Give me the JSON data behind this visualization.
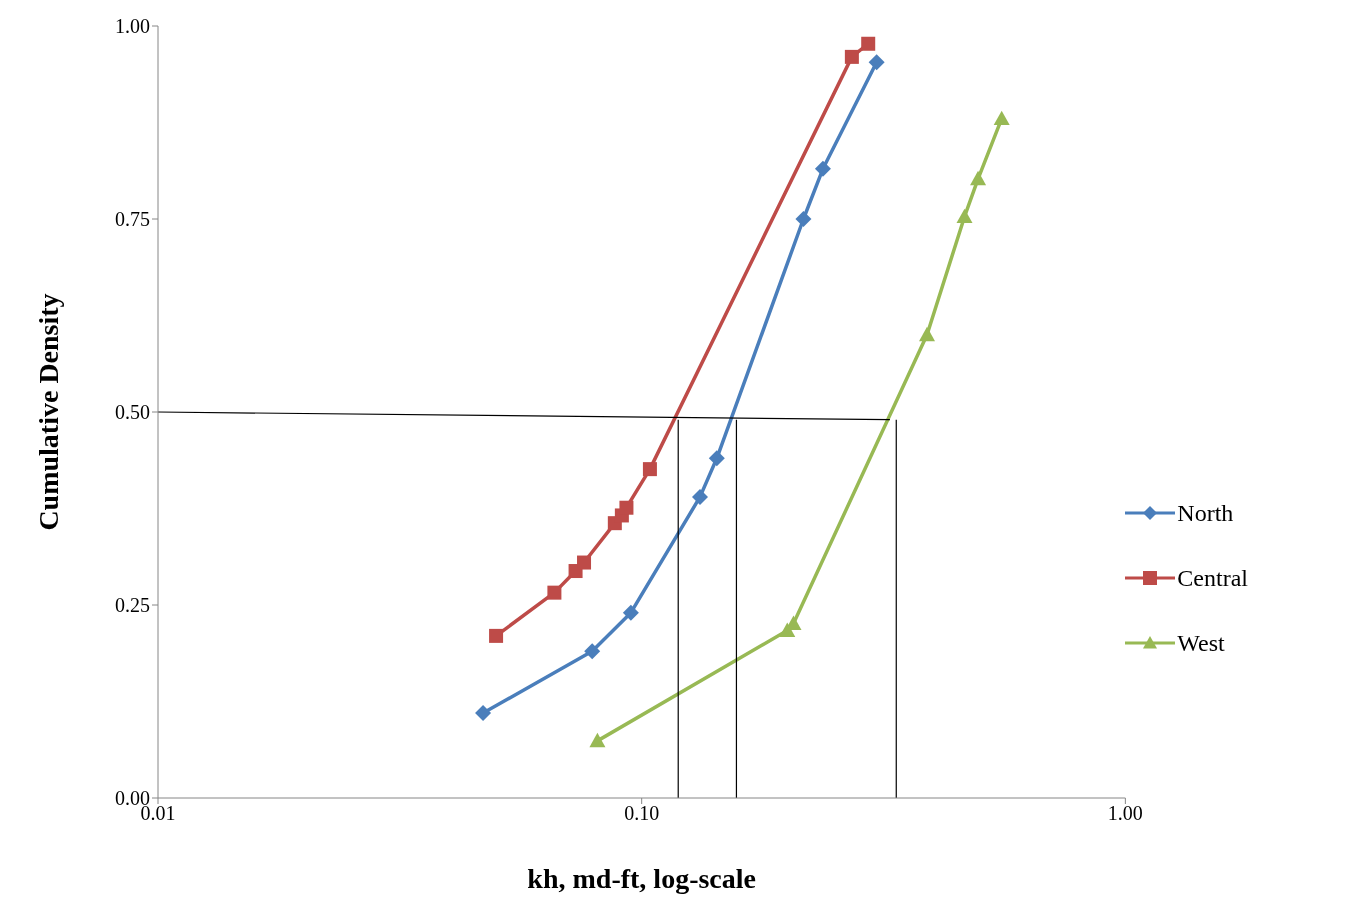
{
  "chart_data": {
    "type": "line",
    "xlabel": "kh, md-ft, log-scale",
    "ylabel": "Cumulative Density",
    "log": "x",
    "xlim": [
      0.01,
      1
    ],
    "xticks": [
      {
        "value": 0.01,
        "label": "0.01"
      },
      {
        "value": 0.1,
        "label": "0.10"
      },
      {
        "value": 1,
        "label": "1.00"
      }
    ],
    "ylim": [
      0,
      1
    ],
    "yticks": [
      {
        "value": 0,
        "label": "0.00"
      },
      {
        "value": 0.25,
        "label": "0.25"
      },
      {
        "value": 0.5,
        "label": "0.50"
      },
      {
        "value": 0.75,
        "label": "0.75"
      },
      {
        "value": 1,
        "label": "1.00"
      }
    ],
    "grid": false,
    "legend": "right",
    "series": [
      {
        "name": "North",
        "color": "#4a7ebb",
        "marker": "diamond",
        "x": [
          0.047,
          0.079,
          0.095,
          0.132,
          0.143,
          0.216,
          0.237,
          0.306
        ],
        "values": [
          0.11,
          0.19,
          0.24,
          0.39,
          0.44,
          0.75,
          0.815,
          0.953
        ]
      },
      {
        "name": "Central",
        "color": "#be4b48",
        "marker": "square",
        "x": [
          0.05,
          0.066,
          0.073,
          0.076,
          0.088,
          0.091,
          0.093,
          0.104,
          0.272,
          0.294
        ],
        "values": [
          0.21,
          0.266,
          0.294,
          0.305,
          0.356,
          0.366,
          0.376,
          0.426,
          0.96,
          0.977
        ]
      },
      {
        "name": "West",
        "color": "#98b954",
        "marker": "triangle",
        "x": [
          0.081,
          0.2,
          0.206,
          0.389,
          0.465,
          0.496,
          0.555
        ],
        "values": [
          0.074,
          0.217,
          0.226,
          0.6,
          0.753,
          0.802,
          0.88
        ]
      },
      {
        "color": "#000000",
        "marker": "none",
        "x": [
          0.01,
          0.326
        ],
        "values": [
          0.5,
          0.49
        ]
      },
      {
        "color": "#000000",
        "marker": "none",
        "x": [
          0.119,
          0.119
        ],
        "values": [
          0.49,
          0
        ]
      },
      {
        "color": "#000000",
        "marker": "none",
        "x": [
          0.157,
          0.157
        ],
        "values": [
          0.49,
          0
        ]
      },
      {
        "color": "#000000",
        "marker": "none",
        "x": [
          0.336,
          0.336
        ],
        "values": [
          0.49,
          0
        ]
      }
    ]
  }
}
